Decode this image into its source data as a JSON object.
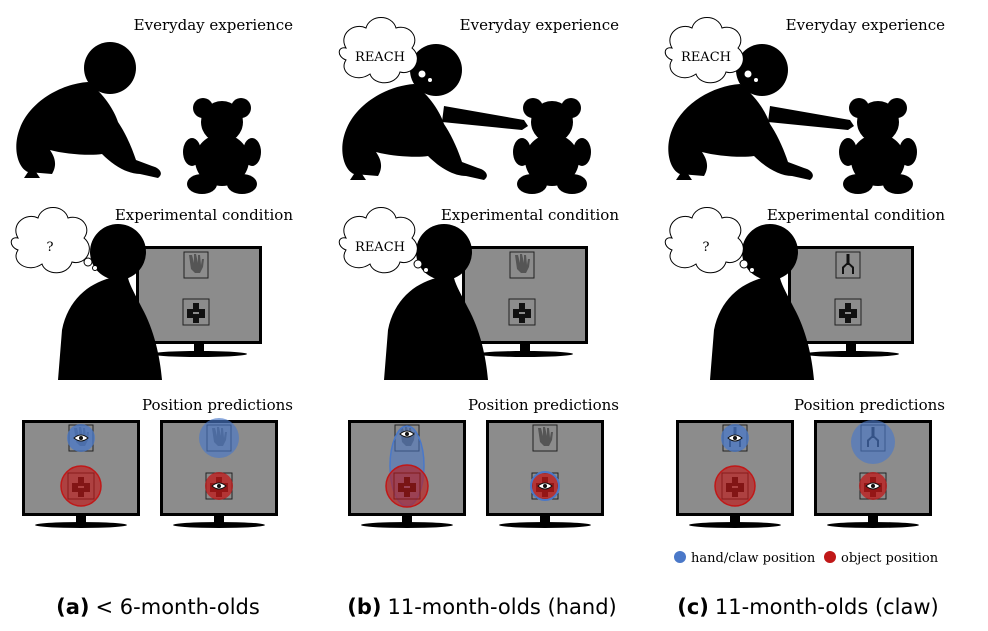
{
  "headings": {
    "everyday": "Everyday experience",
    "experimental": "Experimental condition",
    "predictions": "Position predictions"
  },
  "thoughts": {
    "a_top": "",
    "a_mid": "?",
    "b_top": "REACH",
    "b_mid": "REACH",
    "c_top": "REACH",
    "c_mid": "?"
  },
  "legend": {
    "hand": "hand/claw position",
    "object": "object position"
  },
  "captions": {
    "a_letter": "(a)",
    "a_text": "< 6-month-olds",
    "b_letter": "(b)",
    "b_text": "11-month-olds (hand)",
    "c_letter": "(c)",
    "c_text": "11-month-olds (claw)"
  },
  "colors": {
    "hand": "#4a78c8",
    "object": "#c01818",
    "silhouette": "#000000",
    "screen": "#8c8c8c"
  }
}
